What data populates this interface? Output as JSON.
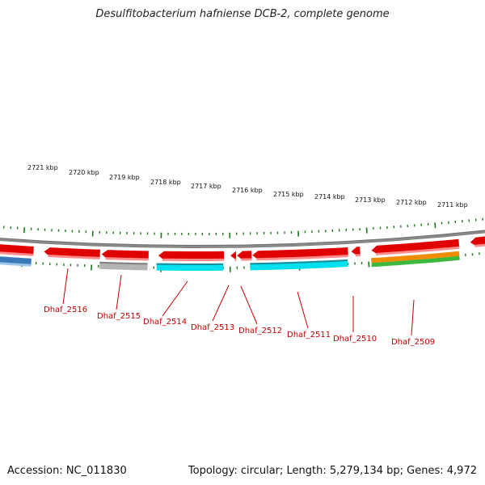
{
  "title": "Desulfitobacterium hafniense DCB-2, complete genome",
  "footer": {
    "accession": "Accession: NC_011830",
    "summary": "Topology: circular; Length: 5,279,134 bp; Genes: 4,972"
  },
  "colors": {
    "backbone": "#8a8a8a",
    "tick": "#1a7a1a",
    "gene_label": "#c00000",
    "forward_gene": "#e00000",
    "blue_feature": "#3a78b8",
    "grey_feature": "#b4b4b4",
    "cyan_feature": "#00e0ee",
    "orange_feature": "#f08c00",
    "green_feature": "#3cb83c"
  },
  "scale": {
    "labels": [
      "2721 kbp",
      "2720 kbp",
      "2719 kbp",
      "2718 kbp",
      "2717 kbp",
      "2716 kbp",
      "2715 kbp",
      "2714 kbp",
      "2713 kbp",
      "2712 kbp",
      "2711 kbp"
    ]
  },
  "genes": [
    {
      "label": "Dhaf_2516"
    },
    {
      "label": "Dhaf_2515"
    },
    {
      "label": "Dhaf_2514"
    },
    {
      "label": "Dhaf_2513"
    },
    {
      "label": "Dhaf_2512"
    },
    {
      "label": "Dhaf_2511"
    },
    {
      "label": "Dhaf_2510"
    },
    {
      "label": "Dhaf_2509"
    }
  ]
}
